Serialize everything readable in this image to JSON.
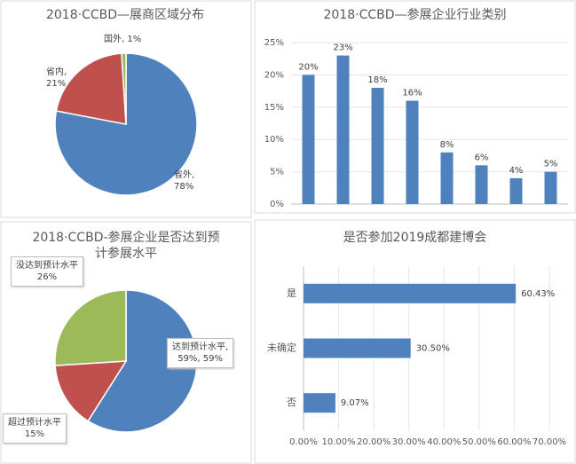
{
  "chart_data": [
    {
      "type": "pie",
      "title": "2018·CCBD—展商区域分布",
      "values": [
        78,
        21,
        1
      ],
      "value_labels": [
        "省外,\n78%",
        "省内,\n21%",
        "国外, 1%"
      ],
      "colors": [
        "#4f81bd",
        "#c0504d",
        "#9bbb59"
      ]
    },
    {
      "type": "bar",
      "title": "2018·CCBD—参展企业行业类别",
      "values": [
        20,
        23,
        18,
        16,
        8,
        6,
        4,
        5
      ],
      "value_labels": [
        "20%",
        "23%",
        "18%",
        "16%",
        "8%",
        "6%",
        "4%",
        "5%"
      ],
      "color": "#4f81bd",
      "ylim": [
        0,
        25
      ],
      "yticks": [
        {
          "value": 0,
          "label": "0%"
        },
        {
          "value": 5,
          "label": "5%"
        },
        {
          "value": 10,
          "label": "10%"
        },
        {
          "value": 15,
          "label": "15%"
        },
        {
          "value": 20,
          "label": "20%"
        },
        {
          "value": 25,
          "label": "25%"
        }
      ],
      "grid": true
    },
    {
      "type": "pie",
      "title": "2018·CCBD-参展企业是否达到预计参展水平",
      "values": [
        59,
        15,
        26
      ],
      "value_labels": [
        "达到预计水平,\n59%, 59%",
        "超过预计水平\n15%",
        "没达到预计水平\n26%"
      ],
      "colors": [
        "#4f81bd",
        "#c0504d",
        "#9bbb59"
      ]
    },
    {
      "type": "bar",
      "orientation": "horizontal",
      "title": "是否参加2019成都建博会",
      "categories": [
        "是",
        "未确定",
        "否"
      ],
      "values": [
        60.43,
        30.5,
        9.07
      ],
      "value_labels": [
        "60.43%",
        "30.50%",
        "9.07%"
      ],
      "color": "#4f81bd",
      "xlim": [
        0,
        70
      ],
      "xticks": [
        {
          "value": 0,
          "label": "0.00%"
        },
        {
          "value": 10,
          "label": "10.00%"
        },
        {
          "value": 20,
          "label": "20.00%"
        },
        {
          "value": 30,
          "label": "30.00%"
        },
        {
          "value": 40,
          "label": "40.00%"
        },
        {
          "value": 50,
          "label": "50.00%"
        },
        {
          "value": 60,
          "label": "60.00%"
        },
        {
          "value": 70,
          "label": "70.00%"
        }
      ],
      "grid": true
    }
  ]
}
